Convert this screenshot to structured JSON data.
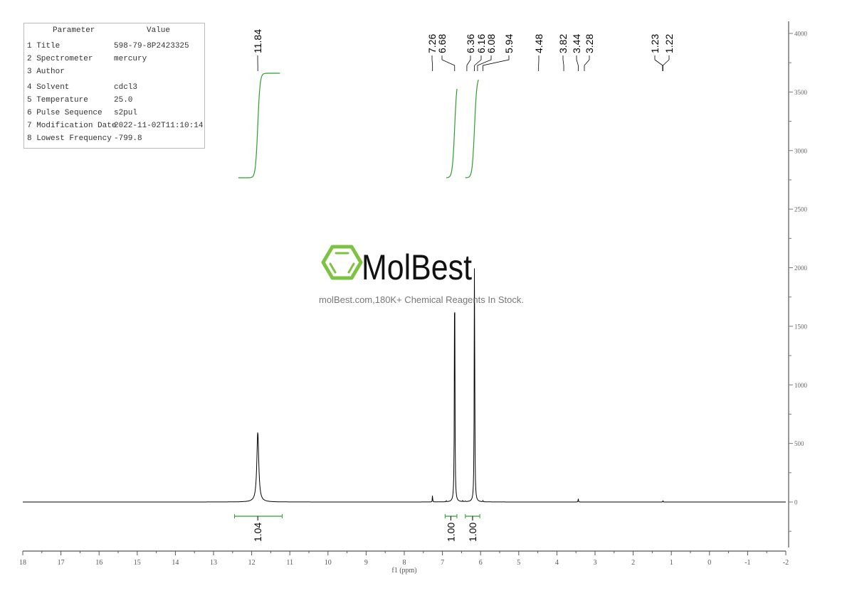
{
  "parameters": {
    "header": {
      "parameter": "Parameter",
      "value": "Value"
    },
    "rows": [
      {
        "label": "1 Title",
        "value": "598-79-8P2423325"
      },
      {
        "label": "2 Spectrometer",
        "value": "mercury"
      },
      {
        "label": "3 Author",
        "value": ""
      },
      {
        "label": "4 Solvent",
        "value": "cdcl3"
      },
      {
        "label": "5 Temperature",
        "value": "25.0"
      },
      {
        "label": "6 Pulse Sequence",
        "value": "s2pul"
      },
      {
        "label": "7 Modification Date",
        "value": "2022-11-02T11:10:14"
      },
      {
        "label": "8 Lowest Frequency",
        "value": "-799.8"
      }
    ]
  },
  "watermark": {
    "logo_text": "MolBest",
    "tagline": "molBest.com,180K+ Chemical Reagents In Stock.",
    "logo_color": "#7dc242"
  },
  "chart_data": {
    "type": "line",
    "xlabel": "f1 (ppm)",
    "xlim": [
      18,
      -2
    ],
    "ylim": [
      -400,
      4100
    ],
    "x_ticks": [
      "18",
      "17",
      "16",
      "15",
      "14",
      "13",
      "12",
      "11",
      "10",
      "9",
      "8",
      "7",
      "6",
      "5",
      "4",
      "3",
      "2",
      "1",
      "0",
      "-1",
      "-2"
    ],
    "y_ticks": [
      "0",
      "500",
      "1000",
      "1500",
      "2000",
      "2500",
      "3000",
      "3500",
      "4000"
    ],
    "y_axis_position": "right",
    "line_color": "#000000",
    "integral_color": "#2e9e2e",
    "peaks": [
      {
        "ppm": 11.84,
        "height": 600,
        "width": 0.03
      },
      {
        "ppm": 7.26,
        "height": 85,
        "width": 0.004
      },
      {
        "ppm": 6.68,
        "height": 2160,
        "width": 0.008
      },
      {
        "ppm": 6.16,
        "height": 2160,
        "width": 0.008
      },
      {
        "ppm": 6.9,
        "height": 8,
        "width": 0.005
      },
      {
        "ppm": 6.47,
        "height": 8,
        "width": 0.005
      },
      {
        "ppm": 6.4,
        "height": 8,
        "width": 0.005
      },
      {
        "ppm": 5.94,
        "height": 10,
        "width": 0.005
      },
      {
        "ppm": 3.44,
        "height": 30,
        "width": 0.005
      },
      {
        "ppm": 1.22,
        "height": 10,
        "width": 0.005
      }
    ],
    "peak_labels": [
      "11.84",
      "7.26",
      "6.68",
      "6.36",
      "6.16",
      "6.08",
      "5.94",
      "4.48",
      "3.82",
      "3.44",
      "3.28",
      "1.23",
      "1.22"
    ],
    "integrals": [
      {
        "from": 12.45,
        "to": 11.2,
        "center": 11.84,
        "value": "1.04"
      },
      {
        "from": 6.93,
        "to": 6.62,
        "center": 6.78,
        "value": "1.00"
      },
      {
        "from": 6.4,
        "to": 6.02,
        "center": 6.21,
        "value": "1.00"
      }
    ]
  }
}
